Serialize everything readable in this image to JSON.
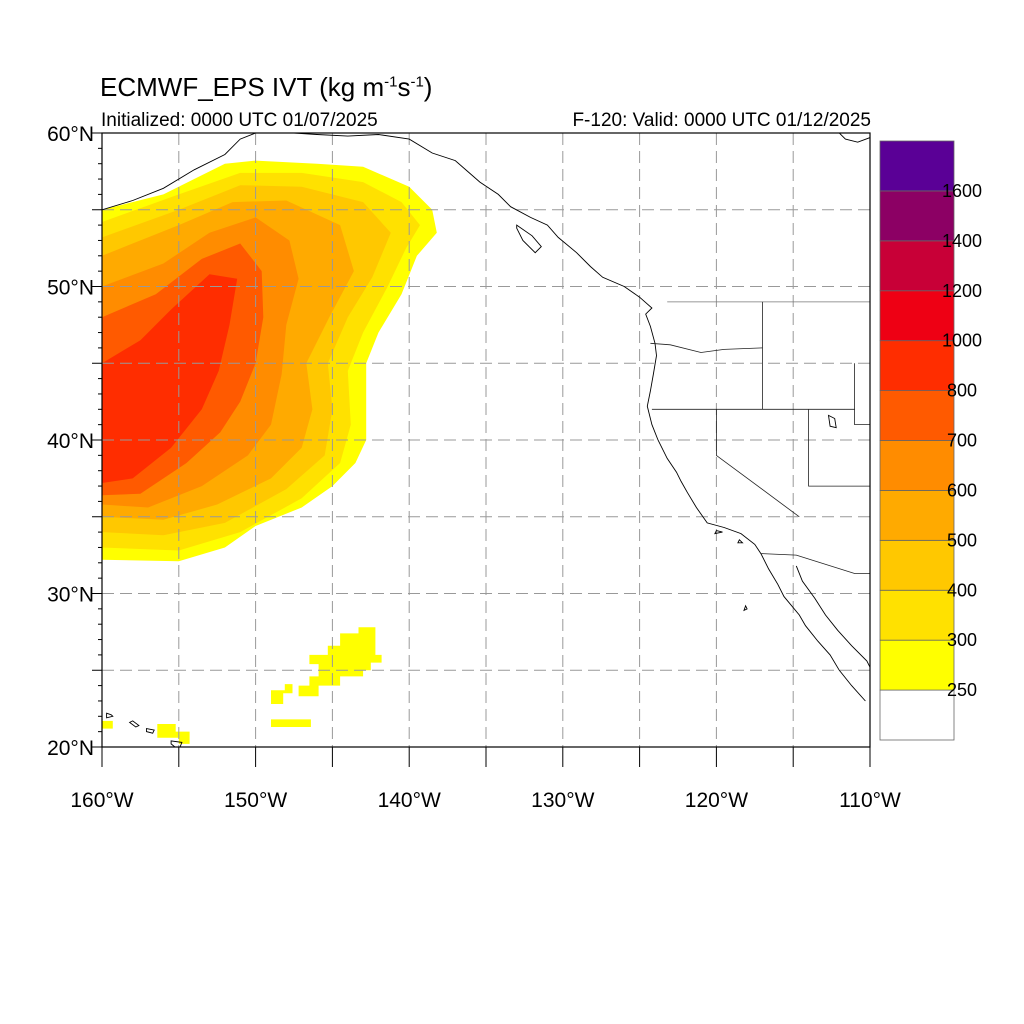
{
  "title": {
    "main": "ECMWF_EPS IVT (kg m",
    "sup1": "-1",
    "mid": "s",
    "sup2": "-1",
    "end": ")"
  },
  "subtitle_left": "Initialized: 0000 UTC 01/07/2025",
  "subtitle_right": "F-120: Valid: 0000 UTC 01/12/2025",
  "map": {
    "lon_range": [
      -160,
      -110
    ],
    "lat_range": [
      20,
      60
    ],
    "grid": true,
    "grid_lon_step": 5,
    "grid_lat_step": 5,
    "lon_ticks": [
      {
        "lon": -160,
        "label": "160°W"
      },
      {
        "lon": -150,
        "label": "150°W"
      },
      {
        "lon": -140,
        "label": "140°W"
      },
      {
        "lon": -130,
        "label": "130°W"
      },
      {
        "lon": -120,
        "label": "120°W"
      },
      {
        "lon": -110,
        "label": "110°W"
      }
    ],
    "lat_ticks": [
      {
        "lat": 20,
        "label": "20°N"
      },
      {
        "lat": 30,
        "label": "30°N"
      },
      {
        "lat": 40,
        "label": "40°N"
      },
      {
        "lat": 50,
        "label": "50°N"
      },
      {
        "lat": 60,
        "label": "60°N"
      }
    ]
  },
  "colorbar": {
    "colors": [
      "#ffffff",
      "#ffff00",
      "#ffe100",
      "#ffc800",
      "#ffaa00",
      "#ff8c00",
      "#ff5a00",
      "#ff2d00",
      "#ee0014",
      "#c80037",
      "#8c0064",
      "#5a0096"
    ],
    "labels": [
      "250",
      "300",
      "400",
      "500",
      "600",
      "700",
      "800",
      "1000",
      "1200",
      "1400",
      "1600"
    ]
  },
  "ivt_field": {
    "main_plume": {
      "outline": [
        [
          -160,
          32.2
        ],
        [
          -155,
          32.1
        ],
        [
          -152,
          33
        ],
        [
          -150,
          34.4
        ],
        [
          -147,
          35.6
        ],
        [
          -145,
          37
        ],
        [
          -143.5,
          38.5
        ],
        [
          -142.8,
          40
        ],
        [
          -142.8,
          42
        ],
        [
          -142.8,
          45
        ],
        [
          -142,
          47
        ],
        [
          -140.5,
          49.5
        ],
        [
          -139.5,
          52
        ],
        [
          -138.2,
          53.5
        ],
        [
          -138.5,
          55
        ],
        [
          -140,
          56.5
        ],
        [
          -143,
          57.8
        ],
        [
          -146,
          58
        ],
        [
          -150,
          58.2
        ],
        [
          -152,
          58
        ],
        [
          -154,
          57
        ],
        [
          -156,
          56
        ],
        [
          -160,
          55
        ]
      ],
      "ring_300": [
        [
          -160,
          33
        ],
        [
          -155,
          32.8
        ],
        [
          -151,
          34
        ],
        [
          -147,
          36.2
        ],
        [
          -144.5,
          38.5
        ],
        [
          -143.8,
          41
        ],
        [
          -144,
          44.5
        ],
        [
          -143,
          47
        ],
        [
          -141.4,
          50
        ],
        [
          -140.2,
          52.5
        ],
        [
          -139.3,
          54
        ],
        [
          -140.5,
          55.5
        ],
        [
          -143,
          56.8
        ],
        [
          -147,
          57.4
        ],
        [
          -151,
          57.4
        ],
        [
          -155,
          56
        ],
        [
          -160,
          54.2
        ]
      ],
      "ring_400": [
        [
          -160,
          34
        ],
        [
          -156,
          33.8
        ],
        [
          -152,
          34.6
        ],
        [
          -148,
          36.8
        ],
        [
          -145.5,
          39
        ],
        [
          -145,
          42
        ],
        [
          -145.3,
          45
        ],
        [
          -144,
          48
        ],
        [
          -142.4,
          50.6
        ],
        [
          -141.2,
          53.5
        ],
        [
          -143,
          55.5
        ],
        [
          -147,
          56.5
        ],
        [
          -151,
          56.6
        ],
        [
          -155,
          55
        ],
        [
          -160,
          53.2
        ]
      ],
      "ring_500": [
        [
          -160,
          35
        ],
        [
          -156,
          34.8
        ],
        [
          -152.5,
          35.8
        ],
        [
          -149,
          37.5
        ],
        [
          -147,
          39.5
        ],
        [
          -146.3,
          42
        ],
        [
          -146.7,
          45
        ],
        [
          -145.2,
          48
        ],
        [
          -143.6,
          51
        ],
        [
          -144.5,
          54
        ],
        [
          -148,
          55.6
        ],
        [
          -151.5,
          55.5
        ],
        [
          -155,
          54
        ],
        [
          -160,
          52
        ]
      ],
      "ring_600": [
        [
          -160,
          35.8
        ],
        [
          -157,
          35.6
        ],
        [
          -153.5,
          37
        ],
        [
          -150.5,
          39
        ],
        [
          -149,
          41
        ],
        [
          -148.3,
          44.3
        ],
        [
          -148,
          47.5
        ],
        [
          -147.2,
          50.5
        ],
        [
          -147.8,
          53
        ],
        [
          -150,
          54.5
        ],
        [
          -153,
          53.5
        ],
        [
          -156,
          51.5
        ],
        [
          -160,
          50
        ]
      ],
      "ring_700": [
        [
          -160,
          36.4
        ],
        [
          -157.5,
          36.5
        ],
        [
          -154.5,
          38.5
        ],
        [
          -152.3,
          40.5
        ],
        [
          -151,
          42.5
        ],
        [
          -150,
          45
        ],
        [
          -149.5,
          48
        ],
        [
          -149.6,
          51
        ],
        [
          -151,
          52.8
        ],
        [
          -153.5,
          51.8
        ],
        [
          -156.5,
          49.5
        ],
        [
          -160,
          48
        ]
      ],
      "ring_800": [
        [
          -160,
          37.2
        ],
        [
          -158,
          37.5
        ],
        [
          -155.5,
          39.5
        ],
        [
          -153.5,
          42
        ],
        [
          -152.4,
          44.5
        ],
        [
          -151.7,
          47.5
        ],
        [
          -151.2,
          50.5
        ],
        [
          -153,
          50.8
        ],
        [
          -155.5,
          48.5
        ],
        [
          -157.5,
          46.5
        ],
        [
          -160,
          45
        ]
      ]
    },
    "island_blobs": [
      [
        [
          -145.3,
          26
        ],
        [
          -145.3,
          26.6
        ],
        [
          -144.5,
          26.6
        ],
        [
          -144.5,
          27.4
        ],
        [
          -143.3,
          27.4
        ],
        [
          -143.3,
          27.8
        ],
        [
          -142.2,
          27.8
        ],
        [
          -142.2,
          26
        ],
        [
          -141.8,
          26
        ],
        [
          -141.8,
          25.5
        ],
        [
          -142.5,
          25.5
        ],
        [
          -142.5,
          25
        ],
        [
          -143,
          25
        ],
        [
          -143,
          24.6
        ],
        [
          -144.5,
          24.6
        ],
        [
          -144.5,
          24
        ],
        [
          -145.9,
          24
        ],
        [
          -145.9,
          23.3
        ],
        [
          -147.2,
          23.3
        ],
        [
          -147.2,
          24
        ],
        [
          -146.5,
          24
        ],
        [
          -146.5,
          24.6
        ],
        [
          -145.9,
          24.6
        ],
        [
          -145.9,
          25.4
        ],
        [
          -146.5,
          25.4
        ],
        [
          -146.5,
          26
        ]
      ],
      [
        [
          -149,
          22.8
        ],
        [
          -148.2,
          22.8
        ],
        [
          -148.2,
          23.5
        ],
        [
          -147.6,
          23.5
        ],
        [
          -147.6,
          24.1
        ],
        [
          -148.1,
          24.1
        ],
        [
          -148.1,
          23.7
        ],
        [
          -149,
          23.7
        ]
      ],
      [
        [
          -149,
          21.3
        ],
        [
          -146.4,
          21.3
        ],
        [
          -146.4,
          21.8
        ],
        [
          -149,
          21.8
        ]
      ],
      [
        [
          -156.4,
          21.5
        ],
        [
          -155.2,
          21.5
        ],
        [
          -155.2,
          21
        ],
        [
          -154.3,
          21
        ],
        [
          -154.3,
          20.2
        ],
        [
          -155,
          20.2
        ],
        [
          -155,
          20.6
        ],
        [
          -156.4,
          20.6
        ]
      ],
      [
        [
          -160,
          21.2
        ],
        [
          -159.3,
          21.2
        ],
        [
          -159.3,
          21.7
        ],
        [
          -160,
          21.7
        ]
      ]
    ]
  },
  "geography": {
    "coast_alaska": [
      [
        -160,
        55
      ],
      [
        -158,
        55.6
      ],
      [
        -156,
        56.4
      ],
      [
        -154,
        57.6
      ],
      [
        -152,
        58.6
      ],
      [
        -151,
        59.6
      ],
      [
        -150,
        60
      ]
    ],
    "coast_panhandle_bc": [
      [
        -147.5,
        60
      ],
      [
        -146,
        59.9
      ],
      [
        -144,
        59.8
      ],
      [
        -142,
        59.9
      ],
      [
        -140,
        59.6
      ],
      [
        -138.5,
        58.7
      ],
      [
        -137,
        58.2
      ],
      [
        -136.2,
        57.5
      ],
      [
        -135.4,
        56.8
      ],
      [
        -134.2,
        56
      ],
      [
        -133.4,
        55.2
      ],
      [
        -132.1,
        54.5
      ],
      [
        -131,
        54
      ],
      [
        -130.3,
        53.2
      ],
      [
        -129.1,
        52.2
      ],
      [
        -128.2,
        51.3
      ],
      [
        -127.4,
        50.6
      ],
      [
        -126,
        50
      ],
      [
        -125,
        49.3
      ],
      [
        -124.2,
        48.6
      ],
      [
        -124.6,
        48.2
      ],
      [
        -124.3,
        47.4
      ],
      [
        -124,
        46.3
      ],
      [
        -123.9,
        45.5
      ],
      [
        -124.1,
        44.3
      ],
      [
        -124.3,
        43.2
      ],
      [
        -124.5,
        42.2
      ],
      [
        -124.2,
        41
      ],
      [
        -123.8,
        40
      ],
      [
        -123.2,
        38.8
      ],
      [
        -122.6,
        37.9
      ],
      [
        -122.3,
        37.3
      ],
      [
        -121.9,
        36.6
      ],
      [
        -121.3,
        35.6
      ],
      [
        -120.6,
        34.6
      ],
      [
        -119.5,
        34.3
      ],
      [
        -118.4,
        33.9
      ],
      [
        -117.5,
        33.2
      ],
      [
        -117.1,
        32.6
      ],
      [
        -116.6,
        31.6
      ],
      [
        -116,
        30.6
      ],
      [
        -115.6,
        29.8
      ],
      [
        -114.6,
        28.6
      ],
      [
        -114.2,
        27.9
      ],
      [
        -113.4,
        26.9
      ],
      [
        -112.6,
        26
      ],
      [
        -112,
        25
      ],
      [
        -111.2,
        24
      ],
      [
        -110.3,
        23
      ]
    ],
    "coast_gulf": [
      [
        -114.8,
        31.8
      ],
      [
        -114.4,
        30.8
      ],
      [
        -113.6,
        29.7
      ],
      [
        -112.9,
        28.6
      ],
      [
        -112.1,
        27.6
      ],
      [
        -111.2,
        26.6
      ],
      [
        -110.2,
        25.6
      ],
      [
        -110,
        25.2
      ]
    ],
    "coast_se_alaska_top": [
      [
        -112,
        60
      ],
      [
        -111.6,
        59.6
      ],
      [
        -110.8,
        59.4
      ],
      [
        -110,
        59.7
      ]
    ],
    "us_canada_border": [
      [
        -123.2,
        49
      ],
      [
        -110,
        49
      ]
    ],
    "borders": [
      [
        [
          -124.3,
          46.3
        ],
        [
          -123,
          46.2
        ],
        [
          -121,
          45.7
        ],
        [
          -119.5,
          45.9
        ],
        [
          -117,
          46
        ]
      ],
      [
        [
          -117,
          49
        ],
        [
          -117,
          42
        ]
      ],
      [
        [
          -124.2,
          42
        ],
        [
          -111,
          42
        ]
      ],
      [
        [
          -120,
          42
        ],
        [
          -120,
          39
        ],
        [
          -114.6,
          35
        ]
      ],
      [
        [
          -114,
          42
        ],
        [
          -114,
          37
        ],
        [
          -110,
          37
        ]
      ],
      [
        [
          -117.1,
          32.6
        ],
        [
          -114.8,
          32.5
        ],
        [
          -111,
          31.3
        ],
        [
          -110,
          31.3
        ]
      ],
      [
        [
          -111,
          45
        ],
        [
          -111,
          41
        ],
        [
          -110,
          41
        ]
      ]
    ],
    "islands": [
      [
        [
          -155.5,
          20.2
        ],
        [
          -155,
          19.8
        ],
        [
          -154.8,
          20.3
        ],
        [
          -155.5,
          20.4
        ]
      ],
      [
        [
          -157.1,
          21.2
        ],
        [
          -156.6,
          21.1
        ],
        [
          -156.7,
          20.9
        ],
        [
          -157.1,
          21
        ]
      ],
      [
        [
          -158.2,
          21.6
        ],
        [
          -157.8,
          21.3
        ],
        [
          -157.6,
          21.4
        ],
        [
          -158,
          21.7
        ]
      ],
      [
        [
          -159.7,
          22.2
        ],
        [
          -159.4,
          22.1
        ],
        [
          -159.3,
          22.0
        ],
        [
          -159.7,
          21.9
        ]
      ],
      [
        [
          -160.2,
          21.9
        ],
        [
          -160,
          21.8
        ],
        [
          -160.1,
          21.7
        ]
      ],
      [
        [
          -118.5,
          33.5
        ],
        [
          -118.3,
          33.3
        ],
        [
          -118.6,
          33.3
        ]
      ],
      [
        [
          -120,
          34.1
        ],
        [
          -119.6,
          34
        ],
        [
          -120.1,
          33.9
        ]
      ],
      [
        [
          -118.1,
          29.2
        ],
        [
          -118.0,
          29.0
        ],
        [
          -118.2,
          28.9
        ]
      ],
      [
        [
          -133,
          54
        ],
        [
          -132,
          53.3
        ],
        [
          -131.4,
          52.6
        ],
        [
          -131.8,
          52.2
        ],
        [
          -132.6,
          53
        ],
        [
          -133,
          53.8
        ]
      ]
    ],
    "lake": [
      [
        -112.7,
        41.6
      ],
      [
        -112.3,
        41.4
      ],
      [
        -112.2,
        40.8
      ],
      [
        -112.6,
        40.9
      ]
    ]
  }
}
